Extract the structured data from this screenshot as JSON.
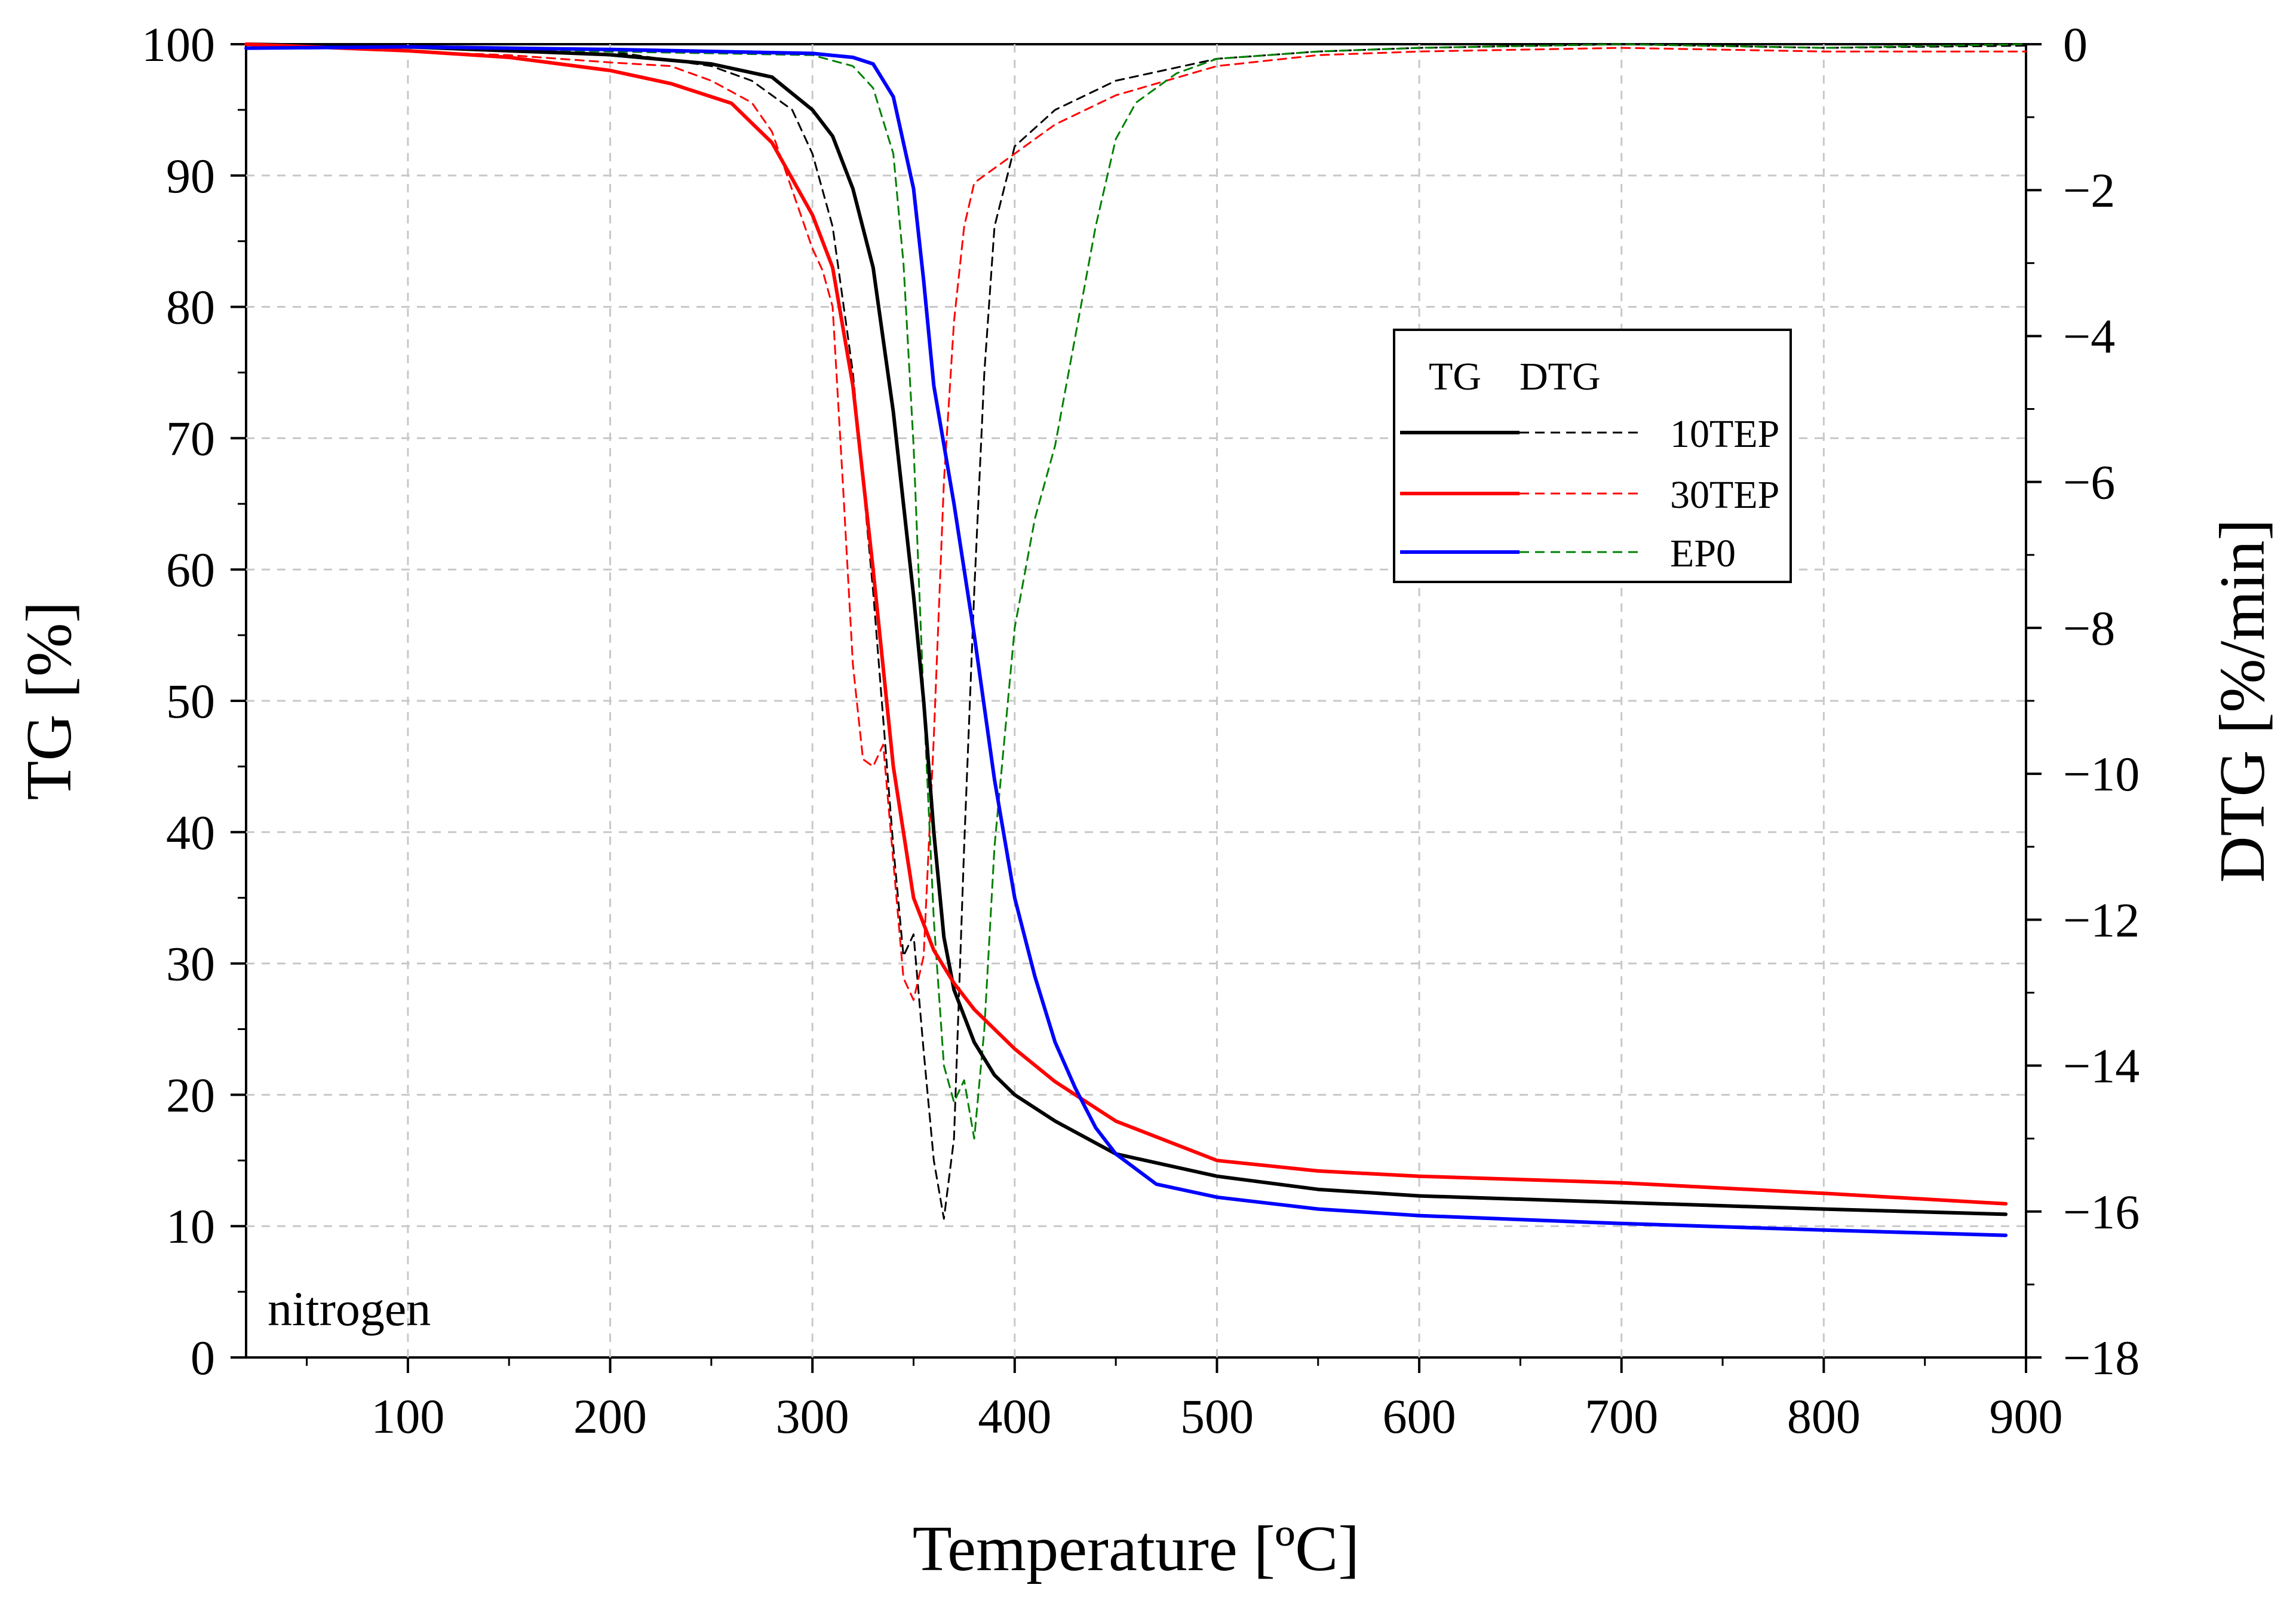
{
  "chart_data": {
    "type": "line",
    "xlabel": "Temperature [ºC]",
    "ylabel_left": "TG [%]",
    "ylabel_right": "DTG [%/min]",
    "xlim": [
      20,
      900
    ],
    "ylim_left": [
      0,
      100
    ],
    "ylim_right": [
      -18,
      0
    ],
    "x_ticks": [
      100,
      200,
      300,
      400,
      500,
      600,
      700,
      800,
      900
    ],
    "y_left_ticks": [
      0,
      10,
      20,
      30,
      40,
      50,
      60,
      70,
      80,
      90,
      100
    ],
    "y_right_ticks": [
      0,
      -2,
      -4,
      -6,
      -8,
      -10,
      -12,
      -14,
      -16,
      -18
    ],
    "x_tick_labels": [
      "100",
      "200",
      "300",
      "400",
      "500",
      "600",
      "700",
      "800",
      "900"
    ],
    "y_left_tick_labels": [
      "0",
      "10",
      "20",
      "30",
      "40",
      "50",
      "60",
      "70",
      "80",
      "90",
      "100"
    ],
    "y_right_tick_labels": [
      "0",
      "−2",
      "−4",
      "−6",
      "−8",
      "−10",
      "−12",
      "−14",
      "−16",
      "−18"
    ],
    "grid": true,
    "annotation": "nitrogen",
    "legend": {
      "position": "center-right",
      "tg_header": "TG",
      "dtg_header": "DTG",
      "entries": [
        "10TEP",
        "30TEP",
        "EP0"
      ]
    },
    "series": [
      {
        "name": "10TEP",
        "kind": "TG",
        "axis": "left",
        "color": "#000000",
        "style": "solid",
        "x": [
          20,
          100,
          200,
          250,
          280,
          300,
          310,
          320,
          330,
          340,
          350,
          355,
          360,
          365,
          370,
          380,
          390,
          400,
          420,
          450,
          500,
          550,
          600,
          700,
          800,
          890
        ],
        "y": [
          100,
          99.8,
          99.2,
          98.5,
          97.5,
          95,
          93,
          89,
          83,
          72,
          58,
          50,
          40,
          32,
          28,
          24,
          21.5,
          20,
          18,
          15.5,
          13.8,
          12.8,
          12.3,
          11.8,
          11.3,
          10.9
        ]
      },
      {
        "name": "30TEP",
        "kind": "TG",
        "axis": "left",
        "color": "#ff0000",
        "style": "solid",
        "x": [
          20,
          100,
          150,
          200,
          230,
          260,
          280,
          300,
          310,
          320,
          330,
          340,
          350,
          360,
          370,
          380,
          400,
          420,
          450,
          500,
          550,
          600,
          700,
          800,
          890
        ],
        "y": [
          100,
          99.5,
          99,
          98,
          97,
          95.5,
          92.5,
          87,
          83,
          74,
          60,
          45,
          35,
          31,
          28.5,
          26.5,
          23.5,
          21,
          18,
          15,
          14.2,
          13.8,
          13.3,
          12.5,
          11.7
        ]
      },
      {
        "name": "EP0",
        "kind": "TG",
        "axis": "left",
        "color": "#0000ff",
        "style": "solid",
        "x": [
          20,
          100,
          200,
          300,
          320,
          330,
          340,
          350,
          355,
          360,
          370,
          380,
          390,
          400,
          410,
          420,
          430,
          440,
          450,
          470,
          500,
          550,
          600,
          700,
          800,
          890
        ],
        "y": [
          99.7,
          99.8,
          99.6,
          99.3,
          99,
          98.5,
          96,
          89,
          82,
          74,
          65,
          55,
          44,
          35,
          29,
          24,
          20.5,
          17.5,
          15.5,
          13.2,
          12.2,
          11.3,
          10.8,
          10.2,
          9.7,
          9.3
        ]
      },
      {
        "name": "10TEP",
        "kind": "DTG",
        "axis": "right",
        "color": "#000000",
        "style": "dashed",
        "x": [
          20,
          100,
          200,
          250,
          270,
          290,
          300,
          310,
          320,
          330,
          340,
          345,
          350,
          355,
          360,
          365,
          370,
          375,
          380,
          385,
          390,
          400,
          420,
          450,
          500,
          550,
          600,
          700,
          800,
          900
        ],
        "y": [
          0,
          -0.05,
          -0.1,
          -0.3,
          -0.5,
          -0.9,
          -1.5,
          -2.5,
          -4.5,
          -7.5,
          -11,
          -12.5,
          -12.2,
          -13.8,
          -15.3,
          -16.1,
          -15,
          -11,
          -7.5,
          -4.5,
          -2.5,
          -1.4,
          -0.9,
          -0.5,
          -0.2,
          -0.1,
          -0.05,
          0,
          -0.05,
          -0.02
        ]
      },
      {
        "name": "30TEP",
        "kind": "DTG",
        "axis": "right",
        "color": "#ff0000",
        "style": "dashed",
        "x": [
          20,
          100,
          150,
          200,
          230,
          250,
          270,
          280,
          290,
          300,
          305,
          310,
          315,
          320,
          325,
          330,
          335,
          340,
          345,
          350,
          355,
          360,
          365,
          370,
          375,
          380,
          400,
          420,
          450,
          500,
          550,
          600,
          700,
          800,
          900
        ],
        "y": [
          0,
          -0.1,
          -0.15,
          -0.25,
          -0.3,
          -0.5,
          -0.8,
          -1.2,
          -2,
          -2.8,
          -3.1,
          -3.6,
          -6,
          -8.5,
          -9.8,
          -9.9,
          -9.6,
          -11.2,
          -12.8,
          -13.1,
          -12.5,
          -9.5,
          -6,
          -3.8,
          -2.5,
          -1.9,
          -1.5,
          -1.1,
          -0.7,
          -0.3,
          -0.15,
          -0.1,
          -0.05,
          -0.1,
          -0.1
        ]
      },
      {
        "name": "EP0",
        "kind": "DTG",
        "axis": "right",
        "color": "#008000",
        "style": "dashed",
        "x": [
          20,
          100,
          200,
          300,
          320,
          330,
          340,
          345,
          350,
          355,
          360,
          365,
          370,
          375,
          380,
          385,
          390,
          395,
          400,
          410,
          420,
          430,
          440,
          450,
          460,
          480,
          500,
          550,
          600,
          700,
          800,
          900
        ],
        "y": [
          0,
          -0.05,
          -0.1,
          -0.15,
          -0.3,
          -0.6,
          -1.5,
          -3,
          -5.5,
          -9,
          -12,
          -14,
          -14.5,
          -14.2,
          -15,
          -13.5,
          -11,
          -9.5,
          -8,
          -6.5,
          -5.5,
          -4,
          -2.5,
          -1.3,
          -0.8,
          -0.4,
          -0.2,
          -0.1,
          -0.05,
          0,
          -0.05,
          0
        ]
      }
    ]
  }
}
